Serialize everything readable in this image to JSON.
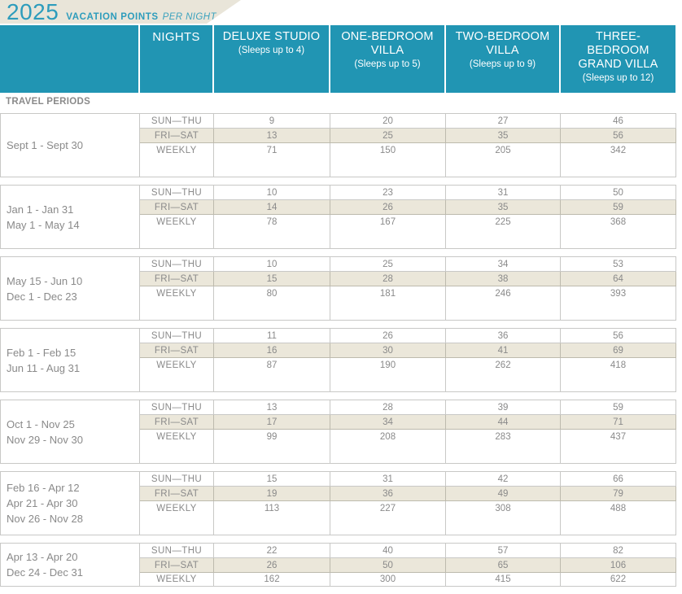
{
  "banner": {
    "year": "2025",
    "title": "VACATION POINTS",
    "subtitle": "PER NIGHT"
  },
  "header": {
    "nights_label": "NIGHTS",
    "columns": [
      {
        "name": "DELUXE STUDIO",
        "sleeps": "(Sleeps up to 4)"
      },
      {
        "name": "ONE-BEDROOM VILLA",
        "sleeps": "(Sleeps up to 5)"
      },
      {
        "name": "TWO-BEDROOM VILLA",
        "sleeps": "(Sleeps up to 9)"
      },
      {
        "name": "THREE-BEDROOM GRAND VILLA",
        "sleeps": "(Sleeps up to 12)"
      }
    ]
  },
  "section_label": "TRAVEL PERIODS",
  "row_labels": [
    "SUN—THU",
    "FRI—SAT",
    "WEEKLY"
  ],
  "groups": [
    {
      "periods": [
        "Sept 1 - Sept 30"
      ],
      "rows": [
        [
          9,
          20,
          27,
          46
        ],
        [
          13,
          25,
          35,
          56
        ],
        [
          71,
          150,
          205,
          342
        ]
      ]
    },
    {
      "periods": [
        "Jan 1 - Jan 31",
        "May 1 - May 14"
      ],
      "rows": [
        [
          10,
          23,
          31,
          50
        ],
        [
          14,
          26,
          35,
          59
        ],
        [
          78,
          167,
          225,
          368
        ]
      ]
    },
    {
      "periods": [
        "May 15 - Jun 10",
        "Dec 1 - Dec 23"
      ],
      "rows": [
        [
          10,
          25,
          34,
          53
        ],
        [
          15,
          28,
          38,
          64
        ],
        [
          80,
          181,
          246,
          393
        ]
      ]
    },
    {
      "periods": [
        "Feb 1 - Feb 15",
        "Jun 11 - Aug 31"
      ],
      "rows": [
        [
          11,
          26,
          36,
          56
        ],
        [
          16,
          30,
          41,
          69
        ],
        [
          87,
          190,
          262,
          418
        ]
      ]
    },
    {
      "periods": [
        "Oct 1 - Nov 25",
        "Nov 29 - Nov 30"
      ],
      "rows": [
        [
          13,
          28,
          39,
          59
        ],
        [
          17,
          34,
          44,
          71
        ],
        [
          99,
          208,
          283,
          437
        ]
      ]
    },
    {
      "periods": [
        "Feb 16 - Apr 12",
        "Apr 21 - Apr 30",
        "Nov 26 - Nov 28"
      ],
      "rows": [
        [
          15,
          31,
          42,
          66
        ],
        [
          19,
          36,
          49,
          79
        ],
        [
          113,
          227,
          308,
          488
        ]
      ]
    },
    {
      "periods": [
        "Apr 13 - Apr 20",
        "Dec 24 - Dec 31"
      ],
      "rows": [
        [
          22,
          40,
          57,
          82
        ],
        [
          26,
          50,
          65,
          106
        ],
        [
          162,
          300,
          415,
          622
        ]
      ]
    }
  ],
  "colors": {
    "teal_header": "#2195B3",
    "title_teal": "#2D9CBC",
    "banner_beige": "#E9E5D9",
    "row_beige": "#EBE7DA",
    "text_gray": "#8A8A8A"
  }
}
